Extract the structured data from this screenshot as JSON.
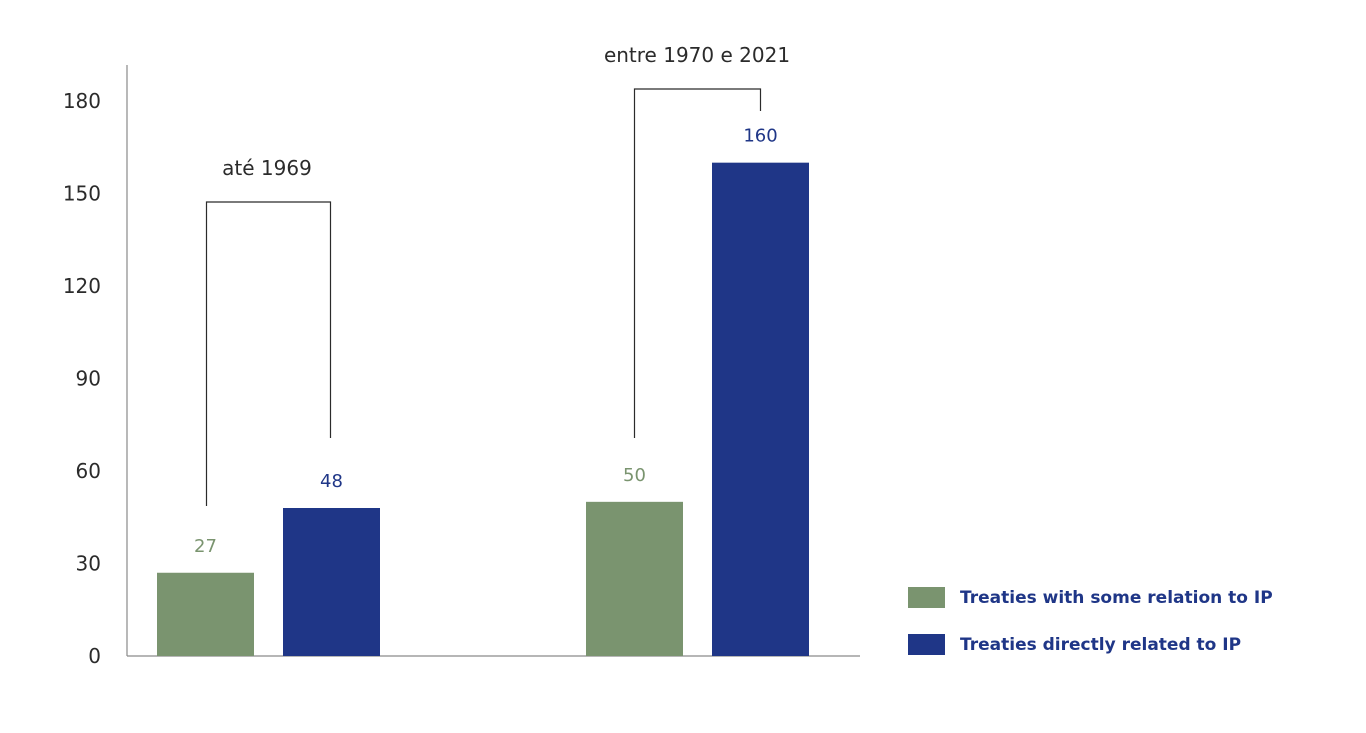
{
  "chart_data": {
    "type": "bar",
    "categories": [
      "até 1969",
      "entre 1970 e 2021"
    ],
    "series": [
      {
        "name": "Treaties with some relation to IP",
        "values": [
          27,
          50
        ],
        "color": "#7a946f"
      },
      {
        "name": "Treaties directly related to IP",
        "values": [
          48,
          160
        ],
        "color": "#1f3687"
      }
    ],
    "data_labels": [
      [
        "27",
        "50"
      ],
      [
        "48",
        "160"
      ]
    ],
    "y_ticks": [
      0,
      30,
      60,
      90,
      120,
      150,
      180
    ],
    "y_tick_labels": [
      "0",
      "30",
      "60",
      "90",
      "120",
      "150",
      "180"
    ],
    "ylim": [
      0,
      195
    ],
    "title": "",
    "xlabel": "",
    "ylabel": "",
    "grid": false,
    "legend_position": "bottom-right"
  }
}
